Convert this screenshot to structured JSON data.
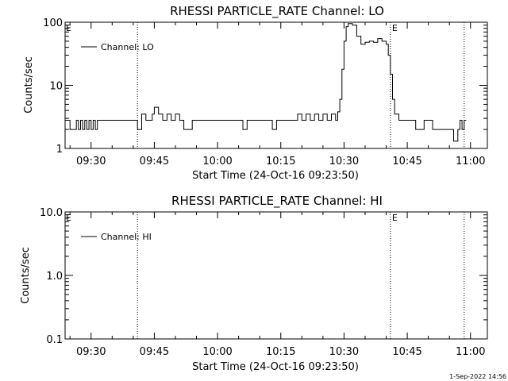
{
  "footer": {
    "timestamp": "1-Sep-2022 14:56"
  },
  "colors": {
    "background": "#ffffff",
    "foreground": "#000000"
  },
  "chart_data": [
    {
      "type": "line",
      "title": "RHESSI PARTICLE_RATE Channel: LO",
      "xlabel": "Start Time (24-Oct-16 09:23:50)",
      "ylabel": "Counts/sec",
      "y_scale": "log",
      "ylim": [
        1,
        100
      ],
      "y_ticks": [
        "1",
        "10",
        "100"
      ],
      "xlim": [
        "09:23:50",
        "11:04:00"
      ],
      "x_ticks": [
        "09:30",
        "09:45",
        "10:00",
        "10:15",
        "10:30",
        "10:45",
        "11:00"
      ],
      "grid": false,
      "legend": "top-left",
      "series": [
        {
          "name": "Channel: LO",
          "x": [
            "09:23:50",
            "09:25:00",
            "09:26:30",
            "09:27:00",
            "09:27:30",
            "09:28:00",
            "09:28:30",
            "09:29:00",
            "09:29:30",
            "09:30:00",
            "09:30:30",
            "09:31:00",
            "09:31:30",
            "09:32:00",
            "09:35:00",
            "09:38:00",
            "09:40:00",
            "09:41:00",
            "09:42:00",
            "09:43:00",
            "09:44:00",
            "09:44:30",
            "09:45:00",
            "09:46:00",
            "09:47:00",
            "09:48:00",
            "09:49:00",
            "09:50:00",
            "09:51:00",
            "09:52:00",
            "09:54:00",
            "09:57:00",
            "10:00:00",
            "10:03:00",
            "10:05:00",
            "10:06:00",
            "10:07:00",
            "10:08:00",
            "10:09:00",
            "10:12:00",
            "10:13:00",
            "10:14:00",
            "10:15:00",
            "10:18:00",
            "10:19:00",
            "10:20:00",
            "10:21:00",
            "10:22:00",
            "10:23:00",
            "10:24:00",
            "10:25:00",
            "10:26:00",
            "10:27:00",
            "10:28:00",
            "10:28:30",
            "10:29:00",
            "10:29:30",
            "10:30:00",
            "10:30:30",
            "10:31:00",
            "10:32:00",
            "10:33:00",
            "10:34:00",
            "10:35:00",
            "10:36:00",
            "10:37:00",
            "10:38:00",
            "10:39:00",
            "10:40:00",
            "10:40:30",
            "10:41:00",
            "10:41:30",
            "10:42:00",
            "10:43:00",
            "10:44:00",
            "10:45:00",
            "10:47:00",
            "10:49:00",
            "10:50:00",
            "10:51:00",
            "10:52:00",
            "10:53:00",
            "10:54:00",
            "10:55:00",
            "10:56:00",
            "10:57:00",
            "10:57:30",
            "10:58:00",
            "10:58:30",
            "10:59:00"
          ],
          "values": [
            2.8,
            2.0,
            2.8,
            2.0,
            2.8,
            2.0,
            2.8,
            2.0,
            2.8,
            2.0,
            2.8,
            2.0,
            2.8,
            2.8,
            2.8,
            2.8,
            2.8,
            2.0,
            3.5,
            2.8,
            2.8,
            3.5,
            4.5,
            3.5,
            2.8,
            3.5,
            2.8,
            3.5,
            2.8,
            2.0,
            2.8,
            2.8,
            2.8,
            2.8,
            2.8,
            2.0,
            2.8,
            2.8,
            2.8,
            2.8,
            2.0,
            2.8,
            2.8,
            2.8,
            3.5,
            2.8,
            3.5,
            2.8,
            3.5,
            2.8,
            3.5,
            2.8,
            3.5,
            2.8,
            3.8,
            6.0,
            18.0,
            50.0,
            85.0,
            95.0,
            90.0,
            60.0,
            45.0,
            48.0,
            50.0,
            48.0,
            55.0,
            50.0,
            45.0,
            30.0,
            15.0,
            6.0,
            3.5,
            2.8,
            2.8,
            2.8,
            2.0,
            2.8,
            2.8,
            2.0,
            2.0,
            2.0,
            2.0,
            2.0,
            1.3,
            2.0,
            2.8,
            2.0,
            2.8,
            2.8
          ]
        }
      ],
      "annotations": [
        {
          "type": "dotted_vline",
          "x": "09:41:00"
        },
        {
          "type": "dotted_vline",
          "x": "10:41:00",
          "label": "E"
        },
        {
          "type": "dotted_vline",
          "x": "10:58:30"
        },
        {
          "type": "label",
          "x": "09:23:50",
          "text": "E"
        }
      ]
    },
    {
      "type": "line",
      "title": "RHESSI PARTICLE_RATE Channel: HI",
      "xlabel": "Start Time (24-Oct-16 09:23:50)",
      "ylabel": "Counts/sec",
      "y_scale": "log",
      "ylim": [
        0.1,
        10.0
      ],
      "y_ticks": [
        "0.1",
        "1.0",
        "10.0"
      ],
      "xlim": [
        "09:23:50",
        "11:04:00"
      ],
      "x_ticks": [
        "09:30",
        "09:45",
        "10:00",
        "10:15",
        "10:30",
        "10:45",
        "11:00"
      ],
      "grid": false,
      "legend": "top-left",
      "series": [
        {
          "name": "Channel: HI",
          "x": [],
          "values": []
        }
      ],
      "annotations": [
        {
          "type": "dotted_vline",
          "x": "09:41:00"
        },
        {
          "type": "dotted_vline",
          "x": "10:41:00",
          "label": "E"
        },
        {
          "type": "dotted_vline",
          "x": "10:58:30"
        },
        {
          "type": "label",
          "x": "09:23:50",
          "text": "E"
        }
      ]
    }
  ]
}
